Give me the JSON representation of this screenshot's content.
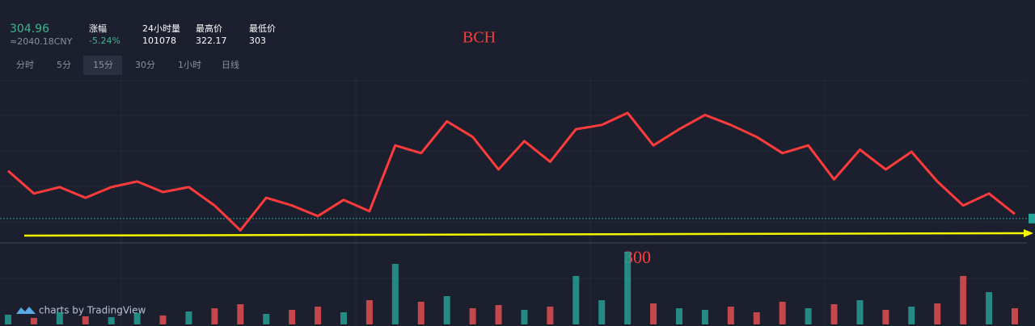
{
  "header": {
    "price": 304.96,
    "cny": "≈2040.18CNY",
    "stats": [
      {
        "label": "涨幅",
        "value": "-5.24%"
      },
      {
        "label": "24小时量",
        "value": "101078"
      },
      {
        "label": "最高价",
        "value": "322.17"
      },
      {
        "label": "最低价",
        "value": "303"
      }
    ],
    "high": 322.17,
    "low": 303
  },
  "tabs": [
    "分时",
    "5分",
    "15分",
    "30分",
    "1小时",
    "日线"
  ],
  "active_tab": 2,
  "annotations": {
    "symbol": "BCH",
    "level": "300"
  },
  "brand": "charts by TradingView",
  "chart_data": {
    "type": "line",
    "closes": [
      311.7,
      308.5,
      309.4,
      307.9,
      309.4,
      310.2,
      308.7,
      309.4,
      306.8,
      303.3,
      307.9,
      306.8,
      305.3,
      307.6,
      306.0,
      315.3,
      314.2,
      318.7,
      316.5,
      311.9,
      315.9,
      313.0,
      317.6,
      318.2,
      319.9,
      315.3,
      317.6,
      319.6,
      318.2,
      316.5,
      314.2,
      315.3,
      310.5,
      314.7,
      311.9,
      314.4,
      310.2,
      306.8,
      308.5,
      305.6
    ],
    "volume": [
      12,
      8,
      15,
      10,
      9,
      14,
      11,
      16,
      20,
      25,
      13,
      18,
      22,
      15,
      30,
      75,
      28,
      35,
      20,
      24,
      18,
      22,
      60,
      30,
      90,
      26,
      20,
      18,
      22,
      15,
      28,
      20,
      25,
      30,
      18,
      22,
      26,
      60,
      40,
      20
    ],
    "up_color": "#26a69a",
    "down_color": "#ef5350",
    "line_color": "#ff3b3b"
  }
}
